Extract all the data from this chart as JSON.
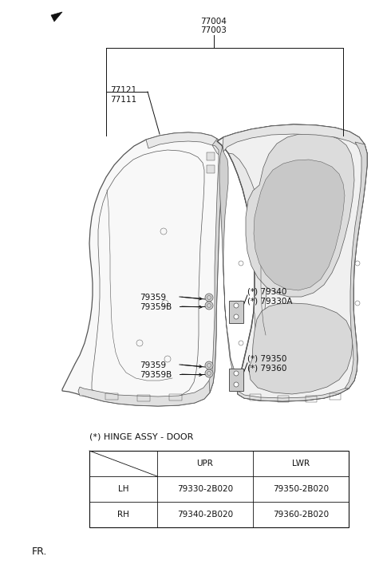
{
  "bg_color": "#ffffff",
  "fig_width": 4.8,
  "fig_height": 7.22,
  "dpi": 100,
  "table_title": "(*) HINGE ASSY - DOOR",
  "table_rows": [
    [
      "LH",
      "79330-2B020",
      "79350-2B020"
    ],
    [
      "RH",
      "79340-2B020",
      "79360-2B020"
    ]
  ],
  "label_77004": "77004",
  "label_77003": "77003",
  "label_77121": "77121",
  "label_77111": "77111",
  "label_79340": "(*) 79340",
  "label_79330A": "(*) 79330A",
  "label_79350": "(*) 79350",
  "label_79360": "(*) 79360",
  "label_79359": "79359",
  "label_79359B": "79359B",
  "label_fr": "FR.",
  "gray": "#555555",
  "black": "#111111",
  "lw_main": 0.9,
  "lw_thin": 0.5
}
